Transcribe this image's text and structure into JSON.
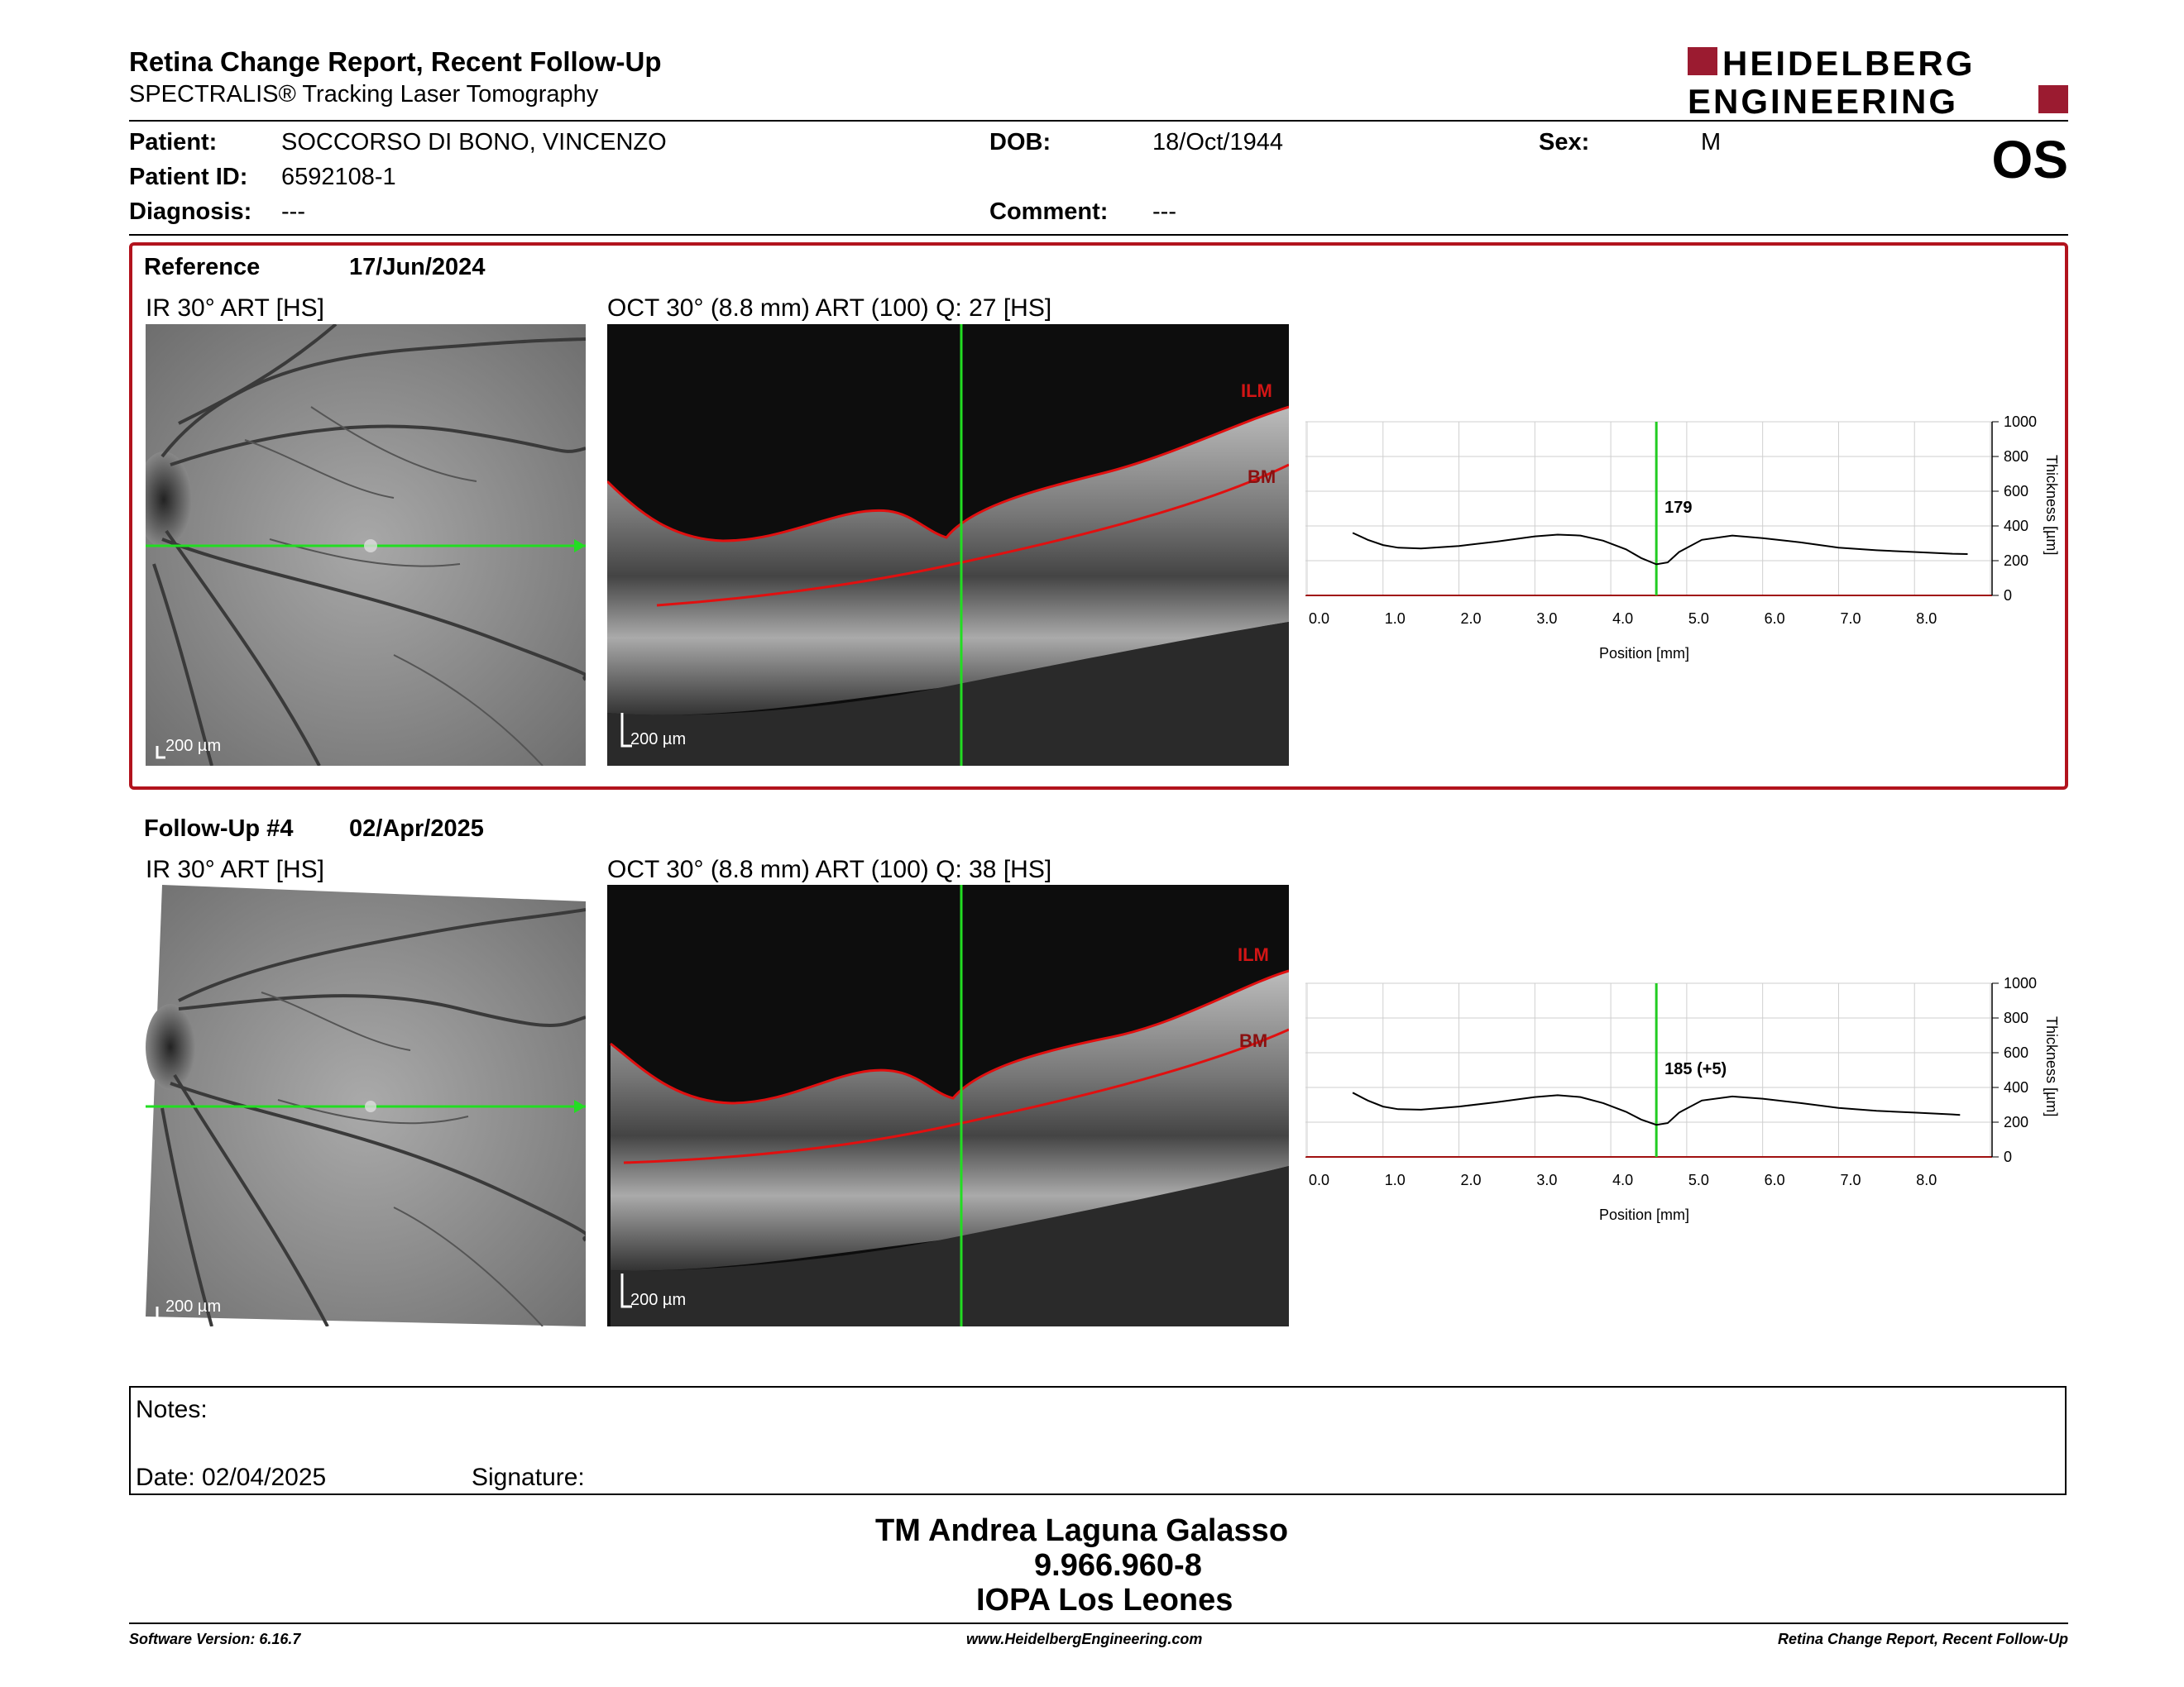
{
  "header": {
    "title": "Retina Change Report, Recent Follow-Up",
    "subtitle": "SPECTRALIS® Tracking Laser Tomography",
    "logo_line1": "HEIDELBERG",
    "logo_line2": "ENGINEERING",
    "brand_color": "#9b1b30"
  },
  "patient": {
    "patient_label": "Patient:",
    "patient_value": "SOCCORSO DI BONO, VINCENZO",
    "dob_label": "DOB:",
    "dob_value": "18/Oct/1944",
    "sex_label": "Sex:",
    "sex_value": "M",
    "id_label": "Patient ID:",
    "id_value": "6592108-1",
    "diagnosis_label": "Diagnosis:",
    "diagnosis_value": "---",
    "comment_label": "Comment:",
    "comment_value": "---",
    "eye": "OS"
  },
  "reference": {
    "label": "Reference",
    "date": "17/Jun/2024",
    "ir_title": "IR 30° ART [HS]",
    "oct_title": "OCT 30° (8.8 mm) ART (100) Q: 27 [HS]",
    "scale_ir": "200 µm",
    "scale_oct": "200 µm",
    "ilm": "ILM",
    "bm": "BM",
    "box_color": "#b2131d"
  },
  "followup": {
    "label": "Follow-Up #4",
    "date": "02/Apr/2025",
    "ir_title": "IR 30° ART [HS]",
    "oct_title": "OCT 30° (8.8 mm) ART (100) Q: 38 [HS]",
    "scale_ir": "200 µm",
    "scale_oct": "200 µm",
    "ilm": "ILM",
    "bm": "BM"
  },
  "chart_data": [
    {
      "type": "line",
      "title": "",
      "xlabel": "Position [mm]",
      "ylabel": "Thickness [µm]",
      "xlim": [
        0.0,
        9.0
      ],
      "ylim": [
        0,
        1000
      ],
      "xticks": [
        "0.0",
        "1.0",
        "2.0",
        "3.0",
        "4.0",
        "5.0",
        "6.0",
        "7.0",
        "8.0"
      ],
      "yticks": [
        "0",
        "200",
        "400",
        "600",
        "800",
        "1000"
      ],
      "marker_x": 4.6,
      "marker_label": "179",
      "grid": true,
      "x": [
        0.6,
        0.8,
        1.0,
        1.2,
        1.5,
        2.0,
        2.5,
        3.0,
        3.3,
        3.6,
        3.9,
        4.2,
        4.4,
        4.6,
        4.75,
        4.9,
        5.2,
        5.6,
        6.0,
        6.5,
        7.0,
        7.5,
        8.0,
        8.5,
        8.7
      ],
      "y": [
        360,
        320,
        290,
        275,
        270,
        285,
        310,
        340,
        350,
        345,
        315,
        265,
        215,
        179,
        190,
        250,
        320,
        345,
        330,
        305,
        275,
        260,
        250,
        240,
        238
      ]
    },
    {
      "type": "line",
      "title": "",
      "xlabel": "Position [mm]",
      "ylabel": "Thickness [µm]",
      "xlim": [
        0.0,
        9.0
      ],
      "ylim": [
        0,
        1000
      ],
      "xticks": [
        "0.0",
        "1.0",
        "2.0",
        "3.0",
        "4.0",
        "5.0",
        "6.0",
        "7.0",
        "8.0"
      ],
      "yticks": [
        "0",
        "200",
        "400",
        "600",
        "800",
        "1000"
      ],
      "marker_x": 4.6,
      "marker_label": "185 (+5)",
      "grid": true,
      "x": [
        0.6,
        0.8,
        1.0,
        1.2,
        1.5,
        2.0,
        2.5,
        3.0,
        3.3,
        3.6,
        3.9,
        4.2,
        4.4,
        4.6,
        4.75,
        4.9,
        5.2,
        5.6,
        6.0,
        6.5,
        7.0,
        7.5,
        8.0,
        8.5,
        8.6
      ],
      "y": [
        370,
        325,
        290,
        275,
        272,
        290,
        315,
        345,
        355,
        345,
        310,
        260,
        215,
        185,
        195,
        255,
        325,
        348,
        335,
        310,
        282,
        265,
        255,
        245,
        242
      ]
    }
  ],
  "notes": {
    "notes_label": "Notes:",
    "date_label": "Date: 02/04/2025",
    "signature_label": "Signature:"
  },
  "signer": {
    "name": "TM Andrea Laguna Galasso",
    "id": "9.966.960-8",
    "institution": "IOPA Los Leones"
  },
  "footer": {
    "version": "Software Version: 6.16.7",
    "website": "www.HeidelbergEngineering.com",
    "report": "Retina Change Report, Recent Follow-Up"
  }
}
